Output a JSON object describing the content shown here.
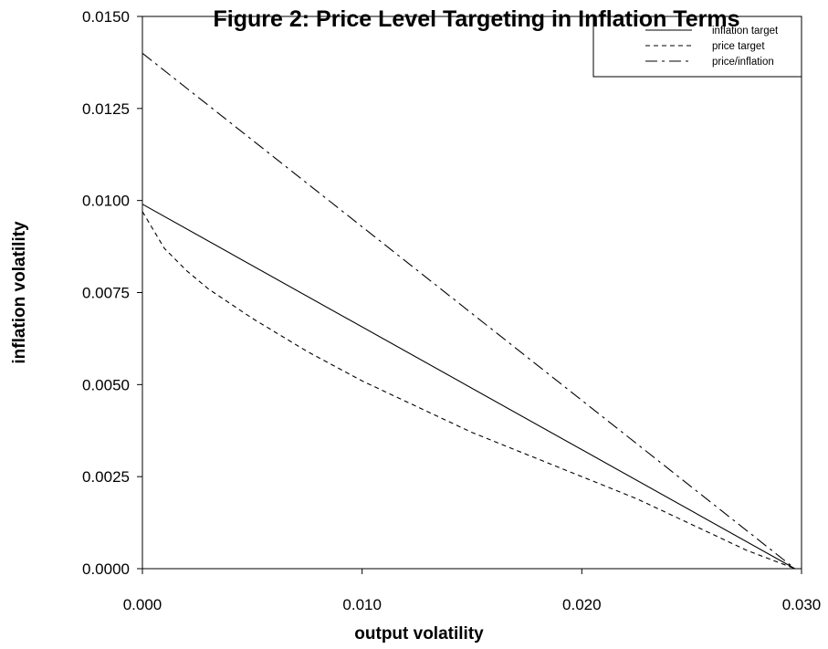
{
  "chart_data": {
    "type": "line",
    "title": "Figure 2: Price Level Targeting in Inflation Terms",
    "xlabel": "output volatility",
    "ylabel": "inflation volatility",
    "xlim": [
      0.0,
      0.03
    ],
    "ylim": [
      0.0,
      0.015
    ],
    "xticks": [
      "0.000",
      "0.010",
      "0.020",
      "0.030"
    ],
    "yticks": [
      "0.0000",
      "0.0025",
      "0.0050",
      "0.0075",
      "0.0100",
      "0.0125",
      "0.0150"
    ],
    "legend_position": "top-right",
    "grid": false,
    "series": [
      {
        "name": "inflation target",
        "dash": "solid",
        "points": [
          [
            0.0,
            0.0099
          ],
          [
            0.0297,
            0.0
          ]
        ]
      },
      {
        "name": "price target",
        "dash": "dashed",
        "points": [
          [
            0.0,
            0.0097
          ],
          [
            0.001,
            0.0087
          ],
          [
            0.002,
            0.0081
          ],
          [
            0.003,
            0.0076
          ],
          [
            0.005,
            0.0068
          ],
          [
            0.0075,
            0.0059
          ],
          [
            0.01,
            0.0051
          ],
          [
            0.0125,
            0.0044
          ],
          [
            0.015,
            0.0037
          ],
          [
            0.0175,
            0.0031
          ],
          [
            0.02,
            0.0025
          ],
          [
            0.0225,
            0.0019
          ],
          [
            0.025,
            0.0012
          ],
          [
            0.0275,
            0.0005
          ],
          [
            0.0297,
            0.0
          ]
        ]
      },
      {
        "name": "price/inflation",
        "dash": "dashdot",
        "points": [
          [
            0.0,
            0.014
          ],
          [
            0.0297,
            0.0
          ]
        ]
      }
    ]
  }
}
